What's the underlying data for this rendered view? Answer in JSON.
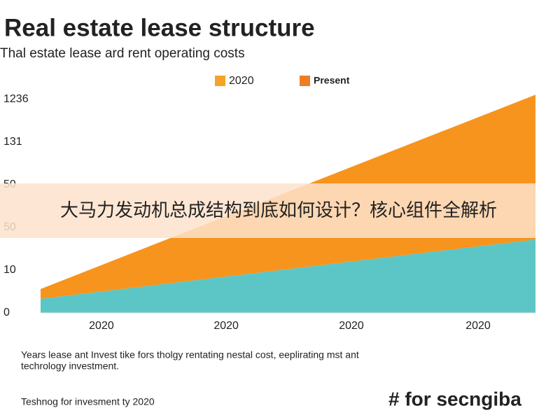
{
  "chart_data": {
    "type": "stacked-area",
    "title": "Real estate lease structure",
    "subtitle": "Thal estate lease ard rent operating costs",
    "legend_entries": [
      {
        "label": "2020",
        "color": "#f5a42a"
      },
      {
        "label": "Present",
        "color": "#ef7d22"
      }
    ],
    "x": [
      0,
      1
    ],
    "xlim": [
      0,
      1
    ],
    "xticks": [
      {
        "value": 0.123,
        "label": "2020"
      },
      {
        "value": 0.375,
        "label": "2020"
      },
      {
        "value": 0.628,
        "label": "2020"
      },
      {
        "value": 0.884,
        "label": "2020"
      }
    ],
    "ylim": [
      0,
      5.2
    ],
    "yticks": [
      0,
      {
        "value": 1,
        "label": "10"
      },
      {
        "value": 2,
        "label": "50"
      },
      {
        "value": 3,
        "label": "50"
      },
      {
        "value": 4,
        "label": "131"
      },
      {
        "value": 5,
        "label": "1236"
      }
    ],
    "series": [
      {
        "color": "#5cc6c6",
        "values": [
          0.33,
          1.72
        ]
      },
      {
        "color": "#f7941d",
        "values": [
          0.23,
          3.39
        ]
      }
    ],
    "banner": "大马力发动机总成结构到底如何设计？核心组件全解析",
    "caption": [
      "Years lease ant Invest tike fors tholgy rentating nestal cost, eeplirating mst ant",
      "techrology investment."
    ],
    "source": "Teshnog for invesment ty 2020",
    "watermark": "# for secngiba"
  }
}
